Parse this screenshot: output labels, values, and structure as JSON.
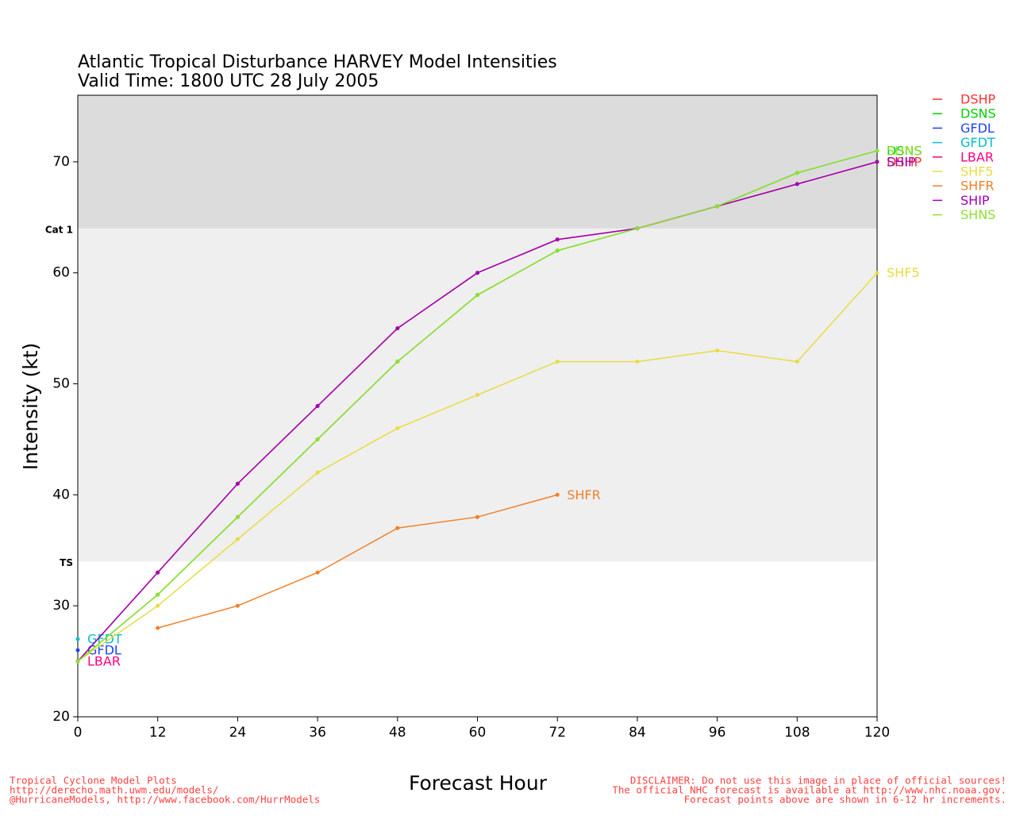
{
  "chart_data": {
    "type": "line",
    "title": "Atlantic Tropical Disturbance HARVEY Model Intensities",
    "subtitle": "Valid Time: 1800 UTC 28 July 2005",
    "xlabel": "Forecast Hour",
    "ylabel": "Intensity (kt)",
    "x": [
      0,
      12,
      24,
      36,
      48,
      60,
      72,
      84,
      96,
      108,
      120
    ],
    "xlim": [
      0,
      120
    ],
    "xticks": [
      0,
      12,
      24,
      36,
      48,
      60,
      72,
      84,
      96,
      108,
      120
    ],
    "ylim": [
      20,
      76
    ],
    "yticks": [
      20,
      30,
      40,
      50,
      60,
      70
    ],
    "thresholds": [
      {
        "value": 34,
        "label": "TS",
        "color": "#efefef"
      },
      {
        "value": 64,
        "label": "Cat 1",
        "color": "#dcdcdc"
      }
    ],
    "series": [
      {
        "name": "DSHP",
        "color": "#ff3030",
        "values": [
          25,
          33,
          41,
          48,
          55,
          60,
          63,
          64,
          66,
          68,
          70
        ]
      },
      {
        "name": "DSNS",
        "color": "#00d000",
        "values": [
          25,
          31,
          38,
          45,
          52,
          58,
          62,
          64,
          66,
          69,
          71
        ]
      },
      {
        "name": "GFDL",
        "color": "#2040ff",
        "values": [
          26,
          null,
          null,
          null,
          null,
          null,
          null,
          null,
          null,
          null,
          null
        ]
      },
      {
        "name": "GFDT",
        "color": "#00c0c8",
        "values": [
          27,
          null,
          null,
          null,
          null,
          null,
          null,
          null,
          null,
          null,
          null
        ]
      },
      {
        "name": "LBAR",
        "color": "#ff0080",
        "values": [
          25,
          null,
          null,
          null,
          null,
          null,
          null,
          null,
          null,
          null,
          null
        ]
      },
      {
        "name": "SHF5",
        "color": "#e8dc40",
        "values": [
          25,
          30,
          36,
          42,
          46,
          49,
          52,
          52,
          53,
          52,
          60
        ]
      },
      {
        "name": "SHFR",
        "color": "#f08028",
        "values": [
          null,
          28,
          30,
          33,
          37,
          38,
          40,
          null,
          null,
          null,
          null
        ]
      },
      {
        "name": "SHIP",
        "color": "#a000b8",
        "values": [
          25,
          33,
          41,
          48,
          55,
          60,
          63,
          64,
          66,
          68,
          70
        ]
      },
      {
        "name": "SHNS",
        "color": "#90e030",
        "values": [
          25,
          31,
          38,
          45,
          52,
          58,
          62,
          64,
          66,
          69,
          71
        ]
      }
    ]
  },
  "footer": {
    "left": [
      "Tropical Cyclone Model Plots",
      "http://derecho.math.uwm.edu/models/",
      "@HurricaneModels, http://www.facebook.com/HurrModels"
    ],
    "right": [
      "DISCLAIMER: Do not use this image in place of official sources!",
      "The official NHC forecast is available at http://www.nhc.noaa.gov.",
      "Forecast points above are shown in 6-12 hr increments."
    ]
  }
}
